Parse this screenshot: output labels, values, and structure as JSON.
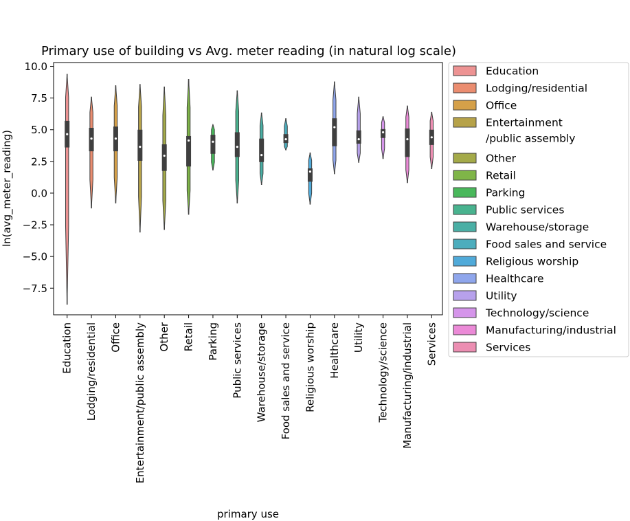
{
  "chart_data": {
    "type": "violin",
    "title": "Primary use of building vs Avg. meter reading (in natural log scale)",
    "xlabel": "primary use",
    "ylabel": "ln(avg_meter_reading)",
    "ylim": [
      -9.6,
      10.3
    ],
    "yticks": [
      10.0,
      7.5,
      5.0,
      2.5,
      0.0,
      -2.5,
      -5.0,
      -7.5
    ],
    "ytick_labels": [
      "10.0",
      "7.5",
      "5.0",
      "2.5",
      "0.0",
      "−2.5",
      "−5.0",
      "−7.5"
    ],
    "grid": false,
    "legend_position": "outside-right",
    "categories": [
      "Education",
      "Lodging/residential",
      "Office",
      "Entertainment/public assembly",
      "Other",
      "Retail",
      "Parking",
      "Public services",
      "Warehouse/storage",
      "Food sales and service",
      "Religious worship",
      "Healthcare",
      "Utility",
      "Technology/science",
      "Manufacturing/industrial",
      "Services"
    ],
    "legend_labels": [
      "Education",
      "Lodging/residential",
      "Office",
      "Entertainment\n/public assembly",
      "Other",
      "Retail",
      "Parking",
      "Public services",
      "Warehouse/storage",
      "Food sales and service",
      "Religious worship",
      "Healthcare",
      "Utility",
      "Technology/science",
      "Manufacturing/industrial",
      "Services"
    ],
    "colors": [
      "#ed9393",
      "#eb8d70",
      "#d5a049",
      "#b6a249",
      "#a4aa49",
      "#7fb548",
      "#49b85b",
      "#49b38f",
      "#4aafa5",
      "#4cadbd",
      "#50aad9",
      "#8fa6ec",
      "#b7a1ec",
      "#d595ea",
      "#eb8ad7",
      "#ec8eb2"
    ],
    "series": [
      {
        "min": -8.8,
        "q1": 3.6,
        "median": 4.65,
        "q3": 5.7,
        "max": 9.4
      },
      {
        "min": -1.2,
        "q1": 3.3,
        "median": 4.3,
        "q3": 5.15,
        "max": 7.6
      },
      {
        "min": -0.8,
        "q1": 3.3,
        "median": 4.3,
        "q3": 5.25,
        "max": 8.5
      },
      {
        "min": -3.1,
        "q1": 2.55,
        "median": 3.65,
        "q3": 5.0,
        "max": 8.6
      },
      {
        "min": -2.9,
        "q1": 1.75,
        "median": 2.95,
        "q3": 3.85,
        "max": 8.4
      },
      {
        "min": -1.7,
        "q1": 2.1,
        "median": 4.15,
        "q3": 4.5,
        "max": 9.0
      },
      {
        "min": 1.8,
        "q1": 3.1,
        "median": 4.05,
        "q3": 4.6,
        "max": 5.4
      },
      {
        "min": -0.8,
        "q1": 2.85,
        "median": 3.65,
        "q3": 4.8,
        "max": 8.1
      },
      {
        "min": 0.65,
        "q1": 2.45,
        "median": 3.0,
        "q3": 4.3,
        "max": 6.35
      },
      {
        "min": 3.4,
        "q1": 3.95,
        "median": 4.25,
        "q3": 4.65,
        "max": 5.9
      },
      {
        "min": -0.9,
        "q1": 0.9,
        "median": 1.7,
        "q3": 1.95,
        "max": 3.2
      },
      {
        "min": 1.5,
        "q1": 3.7,
        "median": 5.2,
        "q3": 5.9,
        "max": 8.8
      },
      {
        "min": 2.4,
        "q1": 3.9,
        "median": 4.25,
        "q3": 4.95,
        "max": 7.6
      },
      {
        "min": 2.7,
        "q1": 4.35,
        "median": 4.8,
        "q3": 5.05,
        "max": 6.05
      },
      {
        "min": 0.8,
        "q1": 2.85,
        "median": 4.25,
        "q3": 5.1,
        "max": 6.9
      },
      {
        "min": 1.9,
        "q1": 3.8,
        "median": 4.4,
        "q3": 5.0,
        "max": 6.4
      }
    ]
  }
}
